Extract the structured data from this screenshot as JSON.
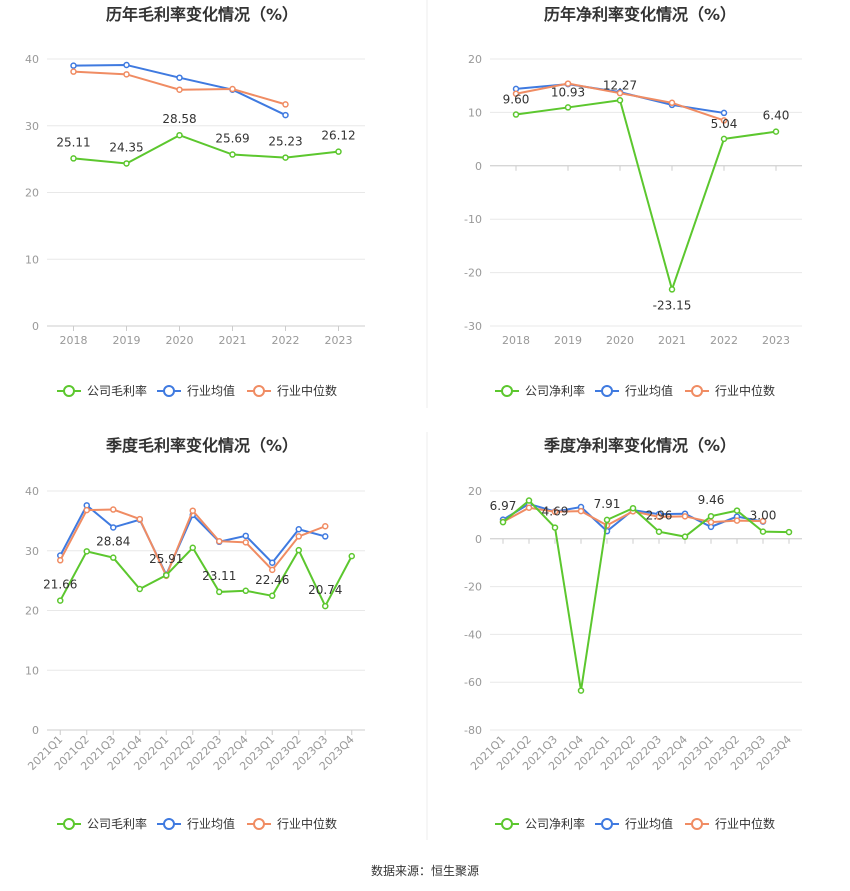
{
  "source": "数据来源：恒生聚源",
  "colors": {
    "company": "#5cc72e",
    "avg": "#3f7ae0",
    "median": "#f08c63",
    "axis": "#999999",
    "grid": "#e8e8e8"
  },
  "chart_data": [
    {
      "type": "line",
      "title": "历年毛利率变化情况（%）",
      "categories": [
        "2018",
        "2019",
        "2020",
        "2021",
        "2022",
        "2023"
      ],
      "ylim": [
        0,
        40
      ],
      "yticks": [
        0,
        10,
        20,
        30,
        40
      ],
      "legend": [
        "公司毛利率",
        "行业均值",
        "行业中位数"
      ],
      "series": [
        {
          "name": "公司毛利率",
          "values": [
            25.11,
            24.35,
            28.58,
            25.69,
            25.23,
            26.12
          ],
          "labels": [
            "25.11",
            "24.35",
            "28.58",
            "25.69",
            "25.23",
            "26.12"
          ]
        },
        {
          "name": "行业均值",
          "values": [
            39.0,
            39.1,
            37.2,
            35.4,
            31.6,
            null
          ]
        },
        {
          "name": "行业中位数",
          "values": [
            38.1,
            37.7,
            35.4,
            35.5,
            33.2,
            null
          ]
        }
      ]
    },
    {
      "type": "line",
      "title": "历年净利率变化情况（%）",
      "categories": [
        "2018",
        "2019",
        "2020",
        "2021",
        "2022",
        "2023"
      ],
      "ylim": [
        -30,
        20
      ],
      "yticks": [
        -30,
        -20,
        -10,
        0,
        10,
        20
      ],
      "legend": [
        "公司净利率",
        "行业均值",
        "行业中位数"
      ],
      "series": [
        {
          "name": "公司净利率",
          "values": [
            9.6,
            10.93,
            12.27,
            -23.15,
            5.04,
            6.4
          ],
          "labels": [
            "9.60",
            "10.93",
            "12.27",
            "-23.15",
            "5.04",
            "6.40"
          ]
        },
        {
          "name": "行业均值",
          "values": [
            14.4,
            15.3,
            13.8,
            11.4,
            9.9,
            null
          ]
        },
        {
          "name": "行业中位数",
          "values": [
            13.5,
            15.4,
            13.6,
            11.8,
            8.5,
            null
          ]
        }
      ]
    },
    {
      "type": "line",
      "title": "季度毛利率变化情况（%）",
      "categories": [
        "2021Q1",
        "2021Q2",
        "2021Q3",
        "2021Q4",
        "2022Q1",
        "2022Q2",
        "2022Q3",
        "2022Q4",
        "2023Q1",
        "2023Q2",
        "2023Q3",
        "2023Q4"
      ],
      "ylim": [
        0,
        40
      ],
      "yticks": [
        0,
        10,
        20,
        30,
        40
      ],
      "legend": [
        "公司毛利率",
        "行业均值",
        "行业中位数"
      ],
      "series": [
        {
          "name": "公司毛利率",
          "values": [
            21.66,
            29.9,
            28.84,
            23.6,
            25.91,
            30.5,
            23.11,
            23.3,
            22.46,
            30.1,
            20.74,
            29.1
          ],
          "labels": [
            "21.66",
            "",
            "28.84",
            "",
            "25.91",
            "",
            "23.11",
            "",
            "22.46",
            "",
            "20.74",
            ""
          ]
        },
        {
          "name": "行业均值",
          "values": [
            29.2,
            37.6,
            33.9,
            35.2,
            26.0,
            36.0,
            31.5,
            32.5,
            28.0,
            33.6,
            32.4,
            null
          ]
        },
        {
          "name": "行业中位数",
          "values": [
            28.4,
            36.8,
            36.9,
            35.3,
            25.8,
            36.7,
            31.6,
            31.4,
            26.8,
            32.4,
            34.1,
            null
          ]
        }
      ]
    },
    {
      "type": "line",
      "title": "季度净利率变化情况（%）",
      "categories": [
        "2021Q1",
        "2021Q2",
        "2021Q3",
        "2021Q4",
        "2022Q1",
        "2022Q2",
        "2022Q3",
        "2022Q4",
        "2023Q1",
        "2023Q2",
        "2023Q3",
        "2023Q4"
      ],
      "ylim": [
        -80,
        20
      ],
      "yticks": [
        -80,
        -60,
        -40,
        -20,
        0,
        20
      ],
      "legend": [
        "公司净利率",
        "行业均值",
        "行业中位数"
      ],
      "series": [
        {
          "name": "公司净利率",
          "values": [
            6.97,
            16.0,
            4.69,
            -63.5,
            7.91,
            12.8,
            2.96,
            0.9,
            9.46,
            11.8,
            3.0,
            2.8
          ],
          "labels": [
            "6.97",
            "",
            "4.69",
            "",
            "7.91",
            "",
            "2.96",
            "",
            "9.46",
            "",
            "3.00",
            ""
          ]
        },
        {
          "name": "行业均值",
          "values": [
            8.0,
            14.6,
            11.4,
            13.3,
            3.2,
            12.0,
            10.3,
            10.5,
            5.0,
            9.3,
            7.2,
            null
          ]
        },
        {
          "name": "行业中位数",
          "values": [
            7.1,
            13.0,
            11.3,
            11.6,
            5.6,
            11.5,
            9.2,
            9.4,
            7.0,
            7.6,
            7.4,
            null
          ]
        }
      ]
    }
  ]
}
